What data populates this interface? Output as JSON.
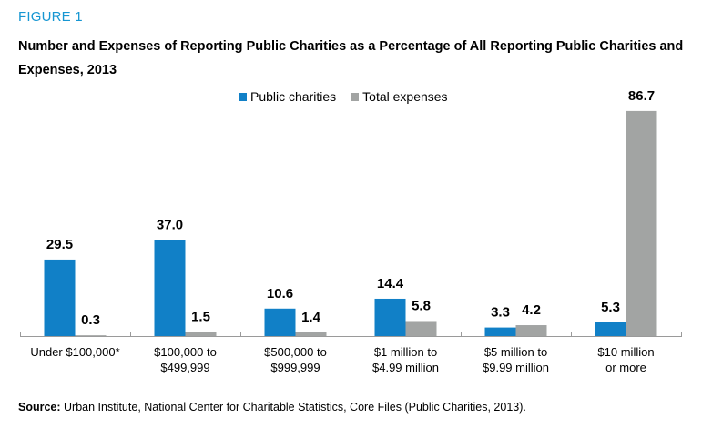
{
  "figure_label": "FIGURE 1",
  "source_label": "Source:",
  "source_text": " Urban Institute, National Center for Charitable Statistics, Core Files (Public Charities, 2013).",
  "chart_data": {
    "type": "bar",
    "title": "Number and Expenses of Reporting Public Charities as a Percentage of All Reporting Public Charities and Expenses, 2013",
    "xlabel": "",
    "ylabel": "",
    "ylim": [
      0,
      90
    ],
    "grid": false,
    "legend_position": "top-center",
    "categories": [
      [
        "Under $100,000*"
      ],
      [
        "$100,000 to",
        "$499,999"
      ],
      [
        "$500,000 to",
        "$999,999"
      ],
      [
        "$1 million to",
        "$4.99 million"
      ],
      [
        "$5 million to",
        "$9.99 million"
      ],
      [
        "$10 million",
        "or more"
      ]
    ],
    "series": [
      {
        "name": "Public charities",
        "color": "#1180c7",
        "values": [
          29.5,
          37.0,
          10.6,
          14.4,
          3.3,
          5.3
        ]
      },
      {
        "name": "Total expenses",
        "color": "#a2a4a3",
        "values": [
          0.3,
          1.5,
          1.4,
          5.8,
          4.2,
          86.7
        ]
      }
    ]
  }
}
